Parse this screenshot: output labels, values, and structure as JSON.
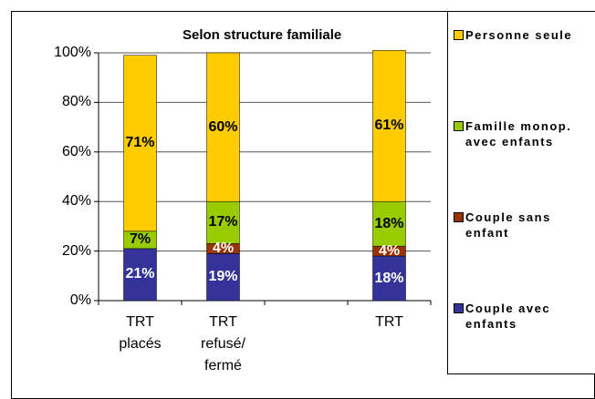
{
  "chart_data": {
    "type": "stacked_bar",
    "title": "Selon structure familiale",
    "categories": [
      "TRT placés",
      "TRT refusé/ fermé",
      null,
      "TRT"
    ],
    "series": [
      {
        "name": "Couple avec enfants",
        "color": "#333399",
        "values": [
          21,
          19,
          null,
          18
        ],
        "value_labels": [
          "21%",
          "19%",
          null,
          "18%"
        ]
      },
      {
        "name": "Couple sans enfant",
        "color": "#993300",
        "values": [
          null,
          4,
          null,
          4
        ],
        "value_labels": [
          null,
          "4%",
          null,
          "4%"
        ]
      },
      {
        "name": "Famille monop. avec enfants",
        "color": "#99cc00",
        "values": [
          7,
          17,
          null,
          18
        ],
        "value_labels": [
          "7%",
          "17%",
          null,
          "18%"
        ]
      },
      {
        "name": "Personne seule",
        "color": "#ffcc00",
        "values": [
          71,
          60,
          null,
          61
        ],
        "value_labels": [
          "71%",
          "60%",
          null,
          "61%"
        ]
      }
    ],
    "ylim": [
      0,
      100
    ],
    "yticks": [
      {
        "value": 0,
        "label": "0%"
      },
      {
        "value": 20,
        "label": "20%"
      },
      {
        "value": 40,
        "label": "40%"
      },
      {
        "value": 60,
        "label": "60%"
      },
      {
        "value": 80,
        "label": "80%"
      },
      {
        "value": 100,
        "label": "100%"
      }
    ],
    "grid": true,
    "legend": "right"
  }
}
